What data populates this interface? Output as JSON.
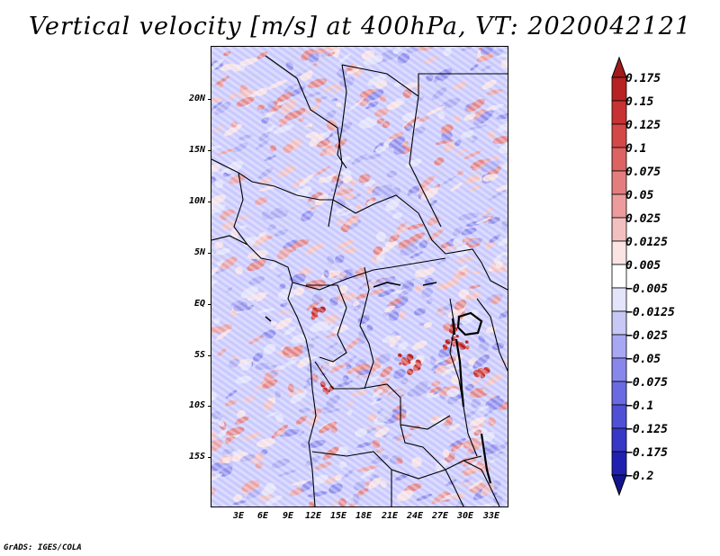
{
  "title": "Vertical velocity [m/s] at 400hPa, VT: 2020042121",
  "footer": "GrADS: IGES/COLA",
  "map": {
    "latitude_labels": [
      "20N",
      "15N",
      "10N",
      "5N",
      "EQ",
      "5S",
      "10S",
      "15S"
    ],
    "longitude_labels": [
      "3E",
      "6E",
      "9E",
      "12E",
      "15E",
      "18E",
      "21E",
      "24E",
      "27E",
      "30E",
      "33E"
    ]
  },
  "colorbar": {
    "labels": [
      "0.175",
      "0.15",
      "0.125",
      "0.1",
      "0.075",
      "0.05",
      "0.025",
      "0.0125",
      "0.005",
      "−0.005",
      "−0.0125",
      "−0.025",
      "−0.05",
      "−0.075",
      "−0.1",
      "−0.125",
      "−0.175",
      "−0.2"
    ],
    "colors": [
      "#a01b1b",
      "#b82222",
      "#c83232",
      "#d44848",
      "#dd6262",
      "#e47e7e",
      "#ec9c9c",
      "#f3c0c0",
      "#fae4e4",
      "#ffffff",
      "#e4e4fb",
      "#c8c8f7",
      "#a8a8f2",
      "#8888ec",
      "#6a6ae2",
      "#5050d6",
      "#3838c6",
      "#2020b0",
      "#14148e"
    ]
  }
}
